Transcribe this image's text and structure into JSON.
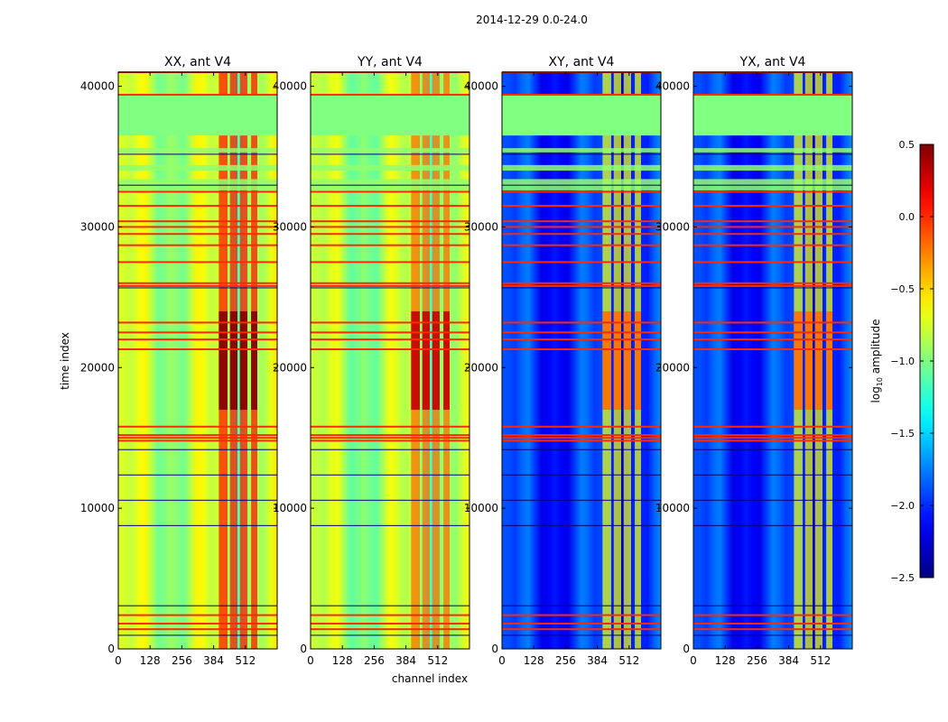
{
  "figure": {
    "suptitle": "2014-12-29 0.0-24.0",
    "xlabel": "channel index",
    "ylabel": "time index"
  },
  "colorbar": {
    "label_main": "log",
    "label_sub": "10",
    "label_tail": " amplitude",
    "range": [
      -2.5,
      0.5
    ],
    "ticks": [
      0.5,
      0.0,
      -0.5,
      -1.0,
      -1.5,
      -2.0,
      -2.5
    ],
    "tick_labels": [
      "0.5",
      "0.0",
      "−0.5",
      "−1.0",
      "−1.5",
      "−2.0",
      "−2.5"
    ],
    "colormap": "jet"
  },
  "chart_data": [
    {
      "type": "heatmap",
      "title": "XX, ant V4",
      "xlabel": "channel index",
      "ylabel": "time index",
      "xlim": [
        0,
        640
      ],
      "ylim": [
        0,
        41000
      ],
      "xticks": [
        0,
        128,
        256,
        384,
        512
      ],
      "yticks": [
        0,
        10000,
        20000,
        30000,
        40000
      ],
      "base_level": -0.85,
      "rfi_level": 0.05,
      "rfi_channels": [
        [
          405,
          440
        ],
        [
          450,
          480
        ],
        [
          490,
          520
        ],
        [
          535,
          560
        ]
      ]
    },
    {
      "type": "heatmap",
      "title": "YY, ant V4",
      "xlabel": "channel index",
      "ylabel": "time index",
      "xlim": [
        0,
        640
      ],
      "ylim": [
        0,
        41000
      ],
      "xticks": [
        0,
        128,
        256,
        384,
        512
      ],
      "yticks": [
        0,
        10000,
        20000,
        30000,
        40000
      ],
      "base_level": -0.9,
      "rfi_level": -0.2,
      "rfi_channels": [
        [
          405,
          440
        ],
        [
          450,
          480
        ],
        [
          490,
          520
        ],
        [
          535,
          560
        ]
      ]
    },
    {
      "type": "heatmap",
      "title": "XY, ant V4",
      "xlabel": "channel index",
      "ylabel": "time index",
      "xlim": [
        0,
        640
      ],
      "ylim": [
        0,
        41000
      ],
      "xticks": [
        0,
        128,
        256,
        384,
        512
      ],
      "yticks": [
        0,
        10000,
        20000,
        30000,
        40000
      ],
      "base_level": -2.0,
      "rfi_level": -0.7,
      "rfi_channels": [
        [
          405,
          440
        ],
        [
          450,
          480
        ],
        [
          490,
          520
        ],
        [
          535,
          560
        ]
      ]
    },
    {
      "type": "heatmap",
      "title": "YX, ant V4",
      "xlabel": "channel index",
      "ylabel": "time index",
      "xlim": [
        0,
        640
      ],
      "ylim": [
        0,
        41000
      ],
      "xticks": [
        0,
        128,
        256,
        384,
        512
      ],
      "yticks": [
        0,
        10000,
        20000,
        30000,
        40000
      ],
      "base_level": -2.0,
      "rfi_level": -0.7,
      "rfi_channels": [
        [
          405,
          440
        ],
        [
          450,
          480
        ],
        [
          490,
          520
        ],
        [
          535,
          560
        ]
      ]
    }
  ],
  "flagged_time_ranges": [
    [
      36500,
      39400
    ]
  ],
  "gap_time_ranges": [
    [
      34000,
      34400
    ],
    [
      35300,
      35600
    ],
    [
      32600,
      33400
    ]
  ],
  "bright_rows": [
    41000,
    39400,
    32500,
    31500,
    30400,
    30000,
    29500,
    28700,
    27500,
    26000,
    25800,
    23200,
    22500,
    22000,
    21300,
    15800,
    15200,
    15000,
    14800,
    2400,
    1800,
    1400
  ],
  "dark_rows": [
    35200,
    33000,
    25700,
    14200,
    12400,
    10600,
    8800,
    3100,
    1000
  ]
}
